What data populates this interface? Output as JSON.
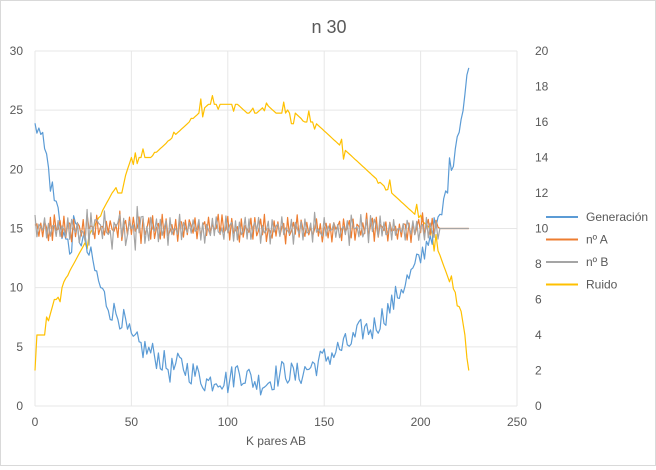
{
  "chart_data": {
    "type": "line",
    "title": "n 30",
    "xlabel": "K pares AB",
    "ylabel": "",
    "xlim": [
      0,
      250
    ],
    "ylim": [
      0,
      30
    ],
    "y2lim": [
      0,
      20
    ],
    "xticks": [
      0,
      50,
      100,
      150,
      200,
      250
    ],
    "yticks": [
      0,
      5,
      10,
      15,
      20,
      25,
      30
    ],
    "y2ticks": [
      0,
      2,
      4,
      6,
      8,
      10,
      12,
      14,
      16,
      18,
      20
    ],
    "grid": true,
    "legend_position": "right",
    "series": [
      {
        "name": "Generación",
        "axis": "left",
        "color": "#5b9bd5",
        "x": [
          0,
          2,
          4,
          6,
          8,
          10,
          12,
          14,
          16,
          18,
          20,
          25,
          30,
          35,
          40,
          45,
          50,
          55,
          60,
          65,
          70,
          75,
          80,
          85,
          90,
          95,
          100,
          105,
          110,
          115,
          120,
          125,
          130,
          135,
          140,
          145,
          150,
          155,
          160,
          165,
          170,
          175,
          180,
          185,
          190,
          195,
          200,
          205,
          210,
          212,
          215,
          218,
          220,
          222,
          225
        ],
        "y": [
          23,
          24.5,
          22.5,
          21,
          19,
          17.5,
          16.5,
          15,
          14,
          13,
          15,
          14,
          12,
          9.5,
          8,
          7.5,
          5.5,
          5,
          4.5,
          4,
          3,
          3.5,
          3,
          2.5,
          2,
          2.5,
          2,
          3,
          2.5,
          2,
          2,
          2.5,
          3,
          2.5,
          3,
          3.5,
          4,
          4.5,
          5,
          5.5,
          6.5,
          6.5,
          7.5,
          8.5,
          10,
          11,
          12.5,
          14.5,
          15.5,
          17,
          20,
          22,
          24,
          25,
          28.5
        ]
      },
      {
        "name": "nº A",
        "axis": "left",
        "color": "#ed7d31",
        "x": [
          0,
          210,
          225
        ],
        "y": [
          15,
          15,
          15
        ],
        "oscillation": 1
      },
      {
        "name": "nº B",
        "axis": "left",
        "color": "#a5a5a5",
        "x": [
          0,
          210,
          225
        ],
        "y": [
          15,
          15,
          15
        ],
        "oscillation": 1
      },
      {
        "name": "Ruido",
        "axis": "right",
        "color": "#ffc000",
        "x": [
          0,
          1,
          5,
          10,
          12,
          15,
          20,
          25,
          30,
          35,
          40,
          45,
          47,
          50,
          55,
          60,
          65,
          70,
          75,
          80,
          85,
          90,
          95,
          100,
          105,
          110,
          115,
          120,
          125,
          130,
          135,
          140,
          145,
          150,
          155,
          160,
          165,
          170,
          175,
          180,
          185,
          190,
          195,
          200,
          205,
          208,
          210,
          215,
          220,
          223,
          225
        ],
        "y": [
          2,
          4,
          4,
          6,
          6,
          7,
          8,
          9,
          10,
          11,
          12,
          12,
          13,
          14,
          14,
          14,
          14.5,
          15,
          15.5,
          16,
          16.5,
          17,
          17,
          17,
          17,
          16.5,
          16.5,
          17,
          16.5,
          16.5,
          16.5,
          16,
          16,
          15.5,
          15,
          14.5,
          14,
          13.5,
          13,
          12.5,
          12,
          11.5,
          11,
          10.5,
          10,
          9,
          8.5,
          7,
          6,
          4,
          2
        ]
      }
    ]
  }
}
